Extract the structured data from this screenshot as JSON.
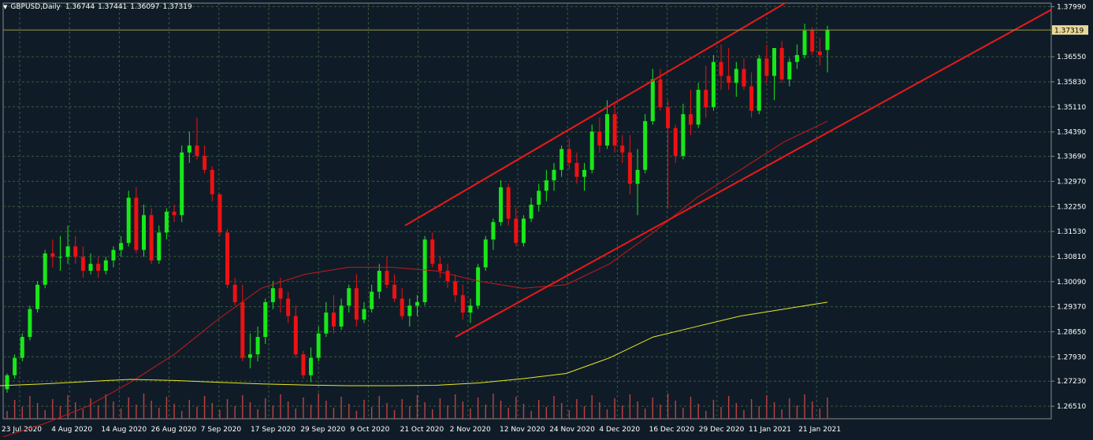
{
  "header": {
    "symbol": "GBPUSD,Daily",
    "open": "1.36744",
    "high": "1.37441",
    "low": "1.36097",
    "close": "1.37319"
  },
  "colors": {
    "background": "#0f1c28",
    "grid": "#3a5a3a",
    "bull": "#18e818",
    "bear": "#ee1111",
    "ma_fast": "#c81818",
    "ma_slow": "#e8e820",
    "channel": "#ee1818",
    "volume": "#c04040",
    "price_tag_bg": "#e8d898",
    "axis_text": "#ffffff"
  },
  "chart_data": {
    "type": "candlestick",
    "y_ticks": [
      "1.37990",
      "1.36550",
      "1.35830",
      "1.35110",
      "1.34390",
      "1.33690",
      "1.32970",
      "1.32250",
      "1.31530",
      "1.30810",
      "1.30090",
      "1.29370",
      "1.28650",
      "1.27930",
      "1.27230",
      "1.26510"
    ],
    "x_ticks": [
      "23 Jul 2020",
      "4 Aug 2020",
      "14 Aug 2020",
      "26 Aug 2020",
      "7 Sep 2020",
      "17 Sep 2020",
      "29 Sep 2020",
      "9 Oct 2020",
      "21 Oct 2020",
      "2 Nov 2020",
      "12 Nov 2020",
      "24 Nov 2020",
      "4 Dec 2020",
      "16 Dec 2020",
      "29 Dec 2020",
      "11 Jan 2021",
      "21 Jan 2021"
    ],
    "current_price_label": "1.37319",
    "ylim": [
      1.2615,
      1.3809
    ],
    "grid": true,
    "candles_ohlc": [
      [
        1.27,
        1.2745,
        1.269,
        1.274
      ],
      [
        1.274,
        1.28,
        1.273,
        1.279
      ],
      [
        1.279,
        1.286,
        1.278,
        1.285
      ],
      [
        1.285,
        1.294,
        1.284,
        1.293
      ],
      [
        1.293,
        1.301,
        1.292,
        1.3
      ],
      [
        1.3,
        1.31,
        1.299,
        1.309
      ],
      [
        1.309,
        1.313,
        1.305,
        1.308
      ],
      [
        1.308,
        1.314,
        1.304,
        1.308
      ],
      [
        1.308,
        1.317,
        1.306,
        1.311
      ],
      [
        1.311,
        1.314,
        1.306,
        1.308
      ],
      [
        1.308,
        1.311,
        1.302,
        1.304
      ],
      [
        1.304,
        1.309,
        1.303,
        1.306
      ],
      [
        1.306,
        1.308,
        1.302,
        1.304
      ],
      [
        1.304,
        1.308,
        1.303,
        1.307
      ],
      [
        1.307,
        1.311,
        1.305,
        1.31
      ],
      [
        1.31,
        1.314,
        1.308,
        1.312
      ],
      [
        1.312,
        1.327,
        1.311,
        1.325
      ],
      [
        1.325,
        1.328,
        1.309,
        1.31
      ],
      [
        1.31,
        1.323,
        1.308,
        1.32
      ],
      [
        1.32,
        1.322,
        1.306,
        1.307
      ],
      [
        1.307,
        1.317,
        1.306,
        1.315
      ],
      [
        1.315,
        1.322,
        1.313,
        1.321
      ],
      [
        1.321,
        1.323,
        1.318,
        1.32
      ],
      [
        1.32,
        1.34,
        1.318,
        1.338
      ],
      [
        1.338,
        1.344,
        1.335,
        1.34
      ],
      [
        1.34,
        1.348,
        1.336,
        1.337
      ],
      [
        1.337,
        1.34,
        1.332,
        1.333
      ],
      [
        1.333,
        1.334,
        1.324,
        1.326
      ],
      [
        1.326,
        1.326,
        1.314,
        1.315
      ],
      [
        1.315,
        1.316,
        1.299,
        1.3
      ],
      [
        1.3,
        1.302,
        1.294,
        1.295
      ],
      [
        1.295,
        1.3,
        1.278,
        1.279
      ],
      [
        1.279,
        1.286,
        1.276,
        1.28
      ],
      [
        1.28,
        1.288,
        1.278,
        1.285
      ],
      [
        1.285,
        1.296,
        1.283,
        1.295
      ],
      [
        1.295,
        1.301,
        1.293,
        1.299
      ],
      [
        1.299,
        1.302,
        1.292,
        1.296
      ],
      [
        1.296,
        1.298,
        1.289,
        1.291
      ],
      [
        1.291,
        1.294,
        1.279,
        1.28
      ],
      [
        1.28,
        1.281,
        1.273,
        1.274
      ],
      [
        1.274,
        1.282,
        1.272,
        1.279
      ],
      [
        1.279,
        1.288,
        1.278,
        1.286
      ],
      [
        1.286,
        1.295,
        1.285,
        1.292
      ],
      [
        1.292,
        1.297,
        1.286,
        1.288
      ],
      [
        1.288,
        1.296,
        1.287,
        1.294
      ],
      [
        1.294,
        1.3,
        1.292,
        1.299
      ],
      [
        1.299,
        1.303,
        1.288,
        1.29
      ],
      [
        1.29,
        1.295,
        1.289,
        1.293
      ],
      [
        1.293,
        1.3,
        1.292,
        1.298
      ],
      [
        1.298,
        1.306,
        1.296,
        1.304
      ],
      [
        1.304,
        1.308,
        1.299,
        1.3
      ],
      [
        1.3,
        1.303,
        1.295,
        1.296
      ],
      [
        1.296,
        1.299,
        1.29,
        1.291
      ],
      [
        1.291,
        1.296,
        1.288,
        1.294
      ],
      [
        1.294,
        1.297,
        1.291,
        1.295
      ],
      [
        1.295,
        1.314,
        1.294,
        1.313
      ],
      [
        1.313,
        1.315,
        1.305,
        1.306
      ],
      [
        1.306,
        1.308,
        1.302,
        1.304
      ],
      [
        1.304,
        1.306,
        1.299,
        1.301
      ],
      [
        1.301,
        1.303,
        1.295,
        1.297
      ],
      [
        1.297,
        1.3,
        1.29,
        1.292
      ],
      [
        1.292,
        1.296,
        1.289,
        1.294
      ],
      [
        1.294,
        1.306,
        1.293,
        1.305
      ],
      [
        1.305,
        1.314,
        1.304,
        1.313
      ],
      [
        1.313,
        1.319,
        1.31,
        1.318
      ],
      [
        1.318,
        1.33,
        1.317,
        1.328
      ],
      [
        1.328,
        1.329,
        1.317,
        1.319
      ],
      [
        1.319,
        1.322,
        1.311,
        1.312
      ],
      [
        1.312,
        1.32,
        1.311,
        1.319
      ],
      [
        1.319,
        1.325,
        1.318,
        1.323
      ],
      [
        1.323,
        1.329,
        1.321,
        1.327
      ],
      [
        1.327,
        1.333,
        1.324,
        1.33
      ],
      [
        1.33,
        1.335,
        1.327,
        1.333
      ],
      [
        1.333,
        1.34,
        1.331,
        1.339
      ],
      [
        1.339,
        1.342,
        1.333,
        1.335
      ],
      [
        1.335,
        1.338,
        1.329,
        1.331
      ],
      [
        1.331,
        1.335,
        1.327,
        1.333
      ],
      [
        1.333,
        1.346,
        1.332,
        1.344
      ],
      [
        1.344,
        1.348,
        1.338,
        1.34
      ],
      [
        1.34,
        1.353,
        1.339,
        1.349
      ],
      [
        1.349,
        1.352,
        1.338,
        1.34
      ],
      [
        1.34,
        1.343,
        1.335,
        1.338
      ],
      [
        1.338,
        1.343,
        1.326,
        1.329
      ],
      [
        1.329,
        1.339,
        1.32,
        1.333
      ],
      [
        1.333,
        1.349,
        1.332,
        1.347
      ],
      [
        1.347,
        1.362,
        1.346,
        1.359
      ],
      [
        1.359,
        1.362,
        1.35,
        1.351
      ],
      [
        1.351,
        1.353,
        1.322,
        1.345
      ],
      [
        1.345,
        1.346,
        1.335,
        1.337
      ],
      [
        1.337,
        1.352,
        1.336,
        1.349
      ],
      [
        1.349,
        1.356,
        1.343,
        1.346
      ],
      [
        1.346,
        1.358,
        1.345,
        1.356
      ],
      [
        1.356,
        1.363,
        1.348,
        1.351
      ],
      [
        1.351,
        1.366,
        1.35,
        1.364
      ],
      [
        1.364,
        1.369,
        1.356,
        1.36
      ],
      [
        1.36,
        1.368,
        1.356,
        1.358
      ],
      [
        1.358,
        1.364,
        1.354,
        1.362
      ],
      [
        1.362,
        1.365,
        1.356,
        1.357
      ],
      [
        1.357,
        1.361,
        1.348,
        1.35
      ],
      [
        1.35,
        1.366,
        1.349,
        1.365
      ],
      [
        1.365,
        1.369,
        1.358,
        1.36
      ],
      [
        1.36,
        1.368,
        1.353,
        1.368
      ],
      [
        1.368,
        1.37,
        1.358,
        1.359
      ],
      [
        1.359,
        1.365,
        1.357,
        1.364
      ],
      [
        1.364,
        1.369,
        1.362,
        1.366
      ],
      [
        1.366,
        1.375,
        1.365,
        1.373
      ],
      [
        1.373,
        1.374,
        1.366,
        1.367
      ],
      [
        1.367,
        1.371,
        1.363,
        1.366
      ],
      [
        1.36744,
        1.37441,
        1.36097,
        1.37319
      ]
    ],
    "moving_averages": [
      {
        "values": [
          1.256,
          1.26,
          1.265,
          1.272,
          1.28,
          1.29,
          1.299,
          1.303,
          1.305,
          1.305,
          1.304,
          1.301,
          1.299,
          1.3,
          1.306,
          1.315,
          1.325,
          1.333,
          1.341,
          1.347
        ]
      },
      {
        "values": [
          1.271,
          1.2715,
          1.2722,
          1.2728,
          1.2725,
          1.272,
          1.2715,
          1.2712,
          1.271,
          1.271,
          1.2711,
          1.2718,
          1.273,
          1.2745,
          1.279,
          1.285,
          1.288,
          1.291,
          1.293,
          1.295
        ]
      }
    ],
    "channel_lines": [
      {
        "name": "upper",
        "from": [
          "21 Oct 2020",
          1.317
        ],
        "to": [
          "29 Dec 2020",
          1.381
        ]
      },
      {
        "name": "lower",
        "from": [
          "2 Nov 2020",
          1.285
        ],
        "to": [
          "21 Jan 2021",
          1.379
        ]
      }
    ]
  }
}
